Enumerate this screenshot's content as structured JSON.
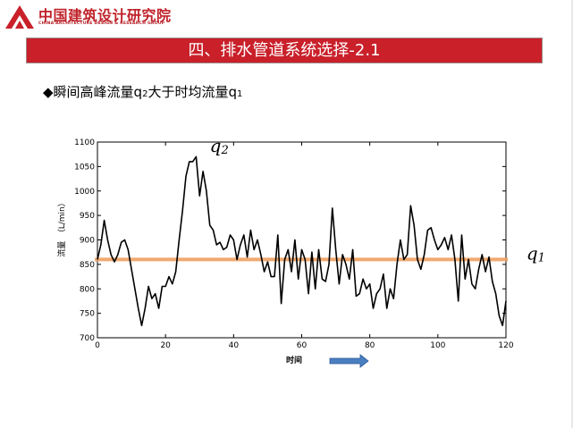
{
  "header": {
    "logo_cn": "中国建筑设计研究院",
    "logo_en": "CHINA ARCHITECTURE DESIGN & RESEARCH GROUP"
  },
  "title": "四、排水管道系统选择-2.1",
  "bullet": {
    "symbol": "◆",
    "text_a": "瞬间高峰流量q",
    "sub_a": "2",
    "text_b": "大于时均流量q",
    "sub_b": "1"
  },
  "colors": {
    "accent": "#c9202a",
    "series": "#000000",
    "threshold": "#f0a060",
    "arrow": "#4a7fc0"
  },
  "chart_data": {
    "type": "line",
    "xlabel": "时间",
    "ylabel": "流量　（L/min）",
    "xlim": [
      0,
      120
    ],
    "ylim": [
      700,
      1100
    ],
    "xticks": [
      0,
      20,
      40,
      60,
      80,
      100,
      120
    ],
    "yticks": [
      700,
      750,
      800,
      850,
      900,
      950,
      1000,
      1050,
      1100
    ],
    "grid": false,
    "series": [
      {
        "values": [
          [
            0,
            860
          ],
          [
            1,
            890
          ],
          [
            2,
            940
          ],
          [
            3,
            900
          ],
          [
            4,
            870
          ],
          [
            5,
            855
          ],
          [
            6,
            870
          ],
          [
            7,
            895
          ],
          [
            8,
            900
          ],
          [
            9,
            880
          ],
          [
            10,
            840
          ],
          [
            11,
            800
          ],
          [
            12,
            760
          ],
          [
            13,
            725
          ],
          [
            14,
            760
          ],
          [
            15,
            805
          ],
          [
            16,
            780
          ],
          [
            17,
            790
          ],
          [
            18,
            760
          ],
          [
            19,
            805
          ],
          [
            20,
            805
          ],
          [
            21,
            825
          ],
          [
            22,
            810
          ],
          [
            23,
            835
          ],
          [
            24,
            900
          ],
          [
            25,
            960
          ],
          [
            26,
            1030
          ],
          [
            27,
            1060
          ],
          [
            28,
            1060
          ],
          [
            29,
            1070
          ],
          [
            30,
            990
          ],
          [
            31,
            1040
          ],
          [
            32,
            1000
          ],
          [
            33,
            930
          ],
          [
            34,
            920
          ],
          [
            35,
            890
          ],
          [
            36,
            895
          ],
          [
            37,
            880
          ],
          [
            38,
            885
          ],
          [
            39,
            910
          ],
          [
            40,
            900
          ],
          [
            41,
            860
          ],
          [
            42,
            890
          ],
          [
            43,
            910
          ],
          [
            44,
            865
          ],
          [
            45,
            920
          ],
          [
            46,
            880
          ],
          [
            47,
            900
          ],
          [
            48,
            870
          ],
          [
            49,
            835
          ],
          [
            50,
            855
          ],
          [
            51,
            825
          ],
          [
            52,
            825
          ],
          [
            53,
            910
          ],
          [
            54,
            770
          ],
          [
            55,
            860
          ],
          [
            56,
            880
          ],
          [
            57,
            835
          ],
          [
            58,
            900
          ],
          [
            59,
            820
          ],
          [
            60,
            880
          ],
          [
            61,
            860
          ],
          [
            62,
            790
          ],
          [
            63,
            875
          ],
          [
            64,
            800
          ],
          [
            65,
            880
          ],
          [
            66,
            820
          ],
          [
            67,
            815
          ],
          [
            68,
            850
          ],
          [
            69,
            965
          ],
          [
            70,
            880
          ],
          [
            71,
            810
          ],
          [
            72,
            870
          ],
          [
            73,
            850
          ],
          [
            74,
            820
          ],
          [
            75,
            880
          ],
          [
            76,
            785
          ],
          [
            77,
            790
          ],
          [
            78,
            820
          ],
          [
            79,
            800
          ],
          [
            80,
            810
          ],
          [
            81,
            760
          ],
          [
            82,
            790
          ],
          [
            83,
            800
          ],
          [
            84,
            830
          ],
          [
            85,
            760
          ],
          [
            86,
            800
          ],
          [
            87,
            780
          ],
          [
            88,
            850
          ],
          [
            89,
            900
          ],
          [
            90,
            860
          ],
          [
            91,
            870
          ],
          [
            92,
            970
          ],
          [
            93,
            930
          ],
          [
            94,
            860
          ],
          [
            95,
            840
          ],
          [
            96,
            870
          ],
          [
            97,
            920
          ],
          [
            98,
            925
          ],
          [
            99,
            900
          ],
          [
            100,
            880
          ],
          [
            101,
            890
          ],
          [
            102,
            905
          ],
          [
            103,
            880
          ],
          [
            104,
            910
          ],
          [
            105,
            860
          ],
          [
            106,
            775
          ],
          [
            107,
            910
          ],
          [
            108,
            820
          ],
          [
            109,
            860
          ],
          [
            110,
            810
          ],
          [
            111,
            800
          ],
          [
            112,
            840
          ],
          [
            113,
            870
          ],
          [
            114,
            835
          ],
          [
            115,
            865
          ],
          [
            116,
            815
          ],
          [
            117,
            790
          ],
          [
            118,
            745
          ],
          [
            119,
            725
          ],
          [
            120,
            775
          ]
        ]
      }
    ],
    "threshold": {
      "value": 860
    },
    "annotations": [
      {
        "text": "q",
        "sub": "2",
        "x": 33,
        "y": 1080
      },
      {
        "text": "q",
        "sub": "1",
        "x": 126,
        "y": 860
      }
    ]
  }
}
